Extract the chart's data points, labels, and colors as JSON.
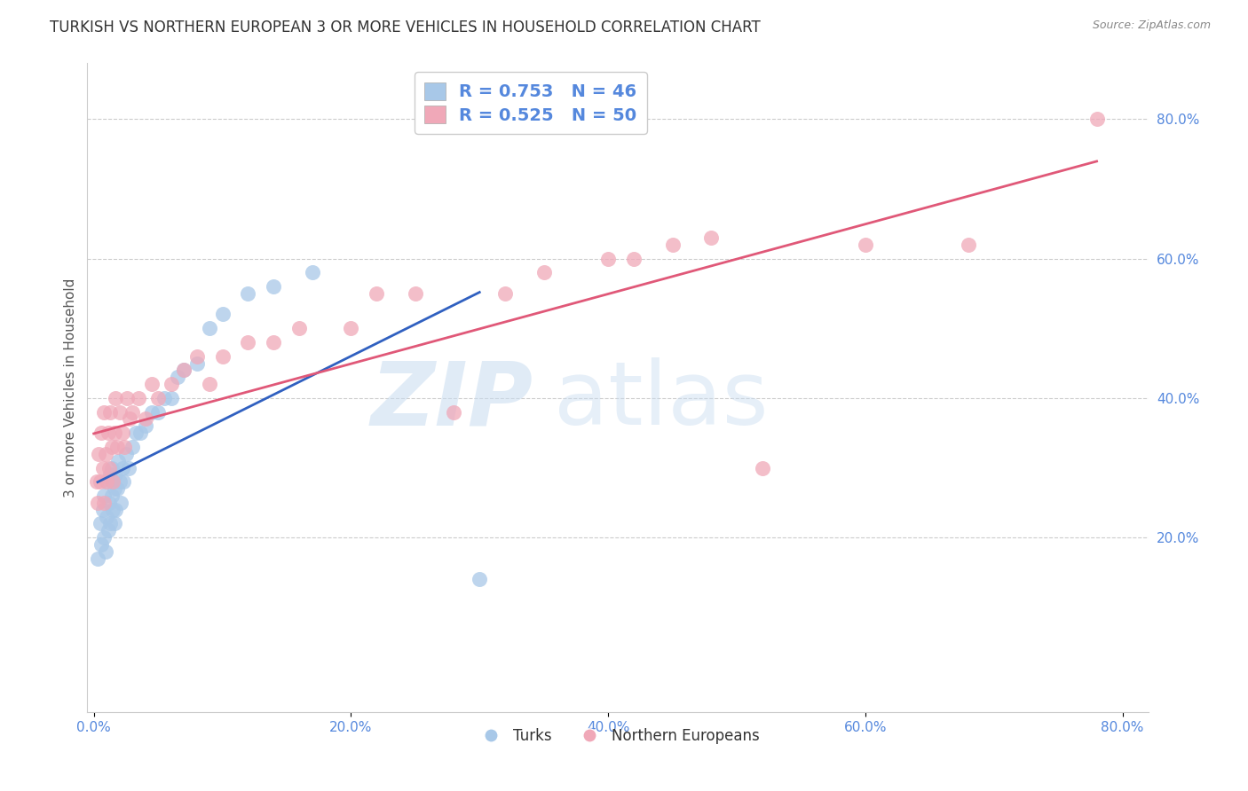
{
  "title": "TURKISH VS NORTHERN EUROPEAN 3 OR MORE VEHICLES IN HOUSEHOLD CORRELATION CHART",
  "source": "Source: ZipAtlas.com",
  "ylabel": "3 or more Vehicles in Household",
  "xlim": [
    -0.005,
    0.82
  ],
  "ylim": [
    -0.05,
    0.88
  ],
  "xtick_values": [
    0.0,
    0.2,
    0.4,
    0.6,
    0.8
  ],
  "ytick_values": [
    0.2,
    0.4,
    0.6,
    0.8
  ],
  "blue_R": 0.753,
  "blue_N": 46,
  "pink_R": 0.525,
  "pink_N": 50,
  "blue_color": "#A8C8E8",
  "pink_color": "#F0A8B8",
  "blue_line_color": "#3060C0",
  "pink_line_color": "#E05878",
  "legend_label_blue": "Turks",
  "legend_label_pink": "Northern Europeans",
  "watermark_zip": "ZIP",
  "watermark_atlas": "atlas",
  "blue_scatter_x": [
    0.003,
    0.005,
    0.006,
    0.007,
    0.008,
    0.008,
    0.009,
    0.01,
    0.01,
    0.011,
    0.012,
    0.013,
    0.013,
    0.014,
    0.014,
    0.015,
    0.015,
    0.016,
    0.016,
    0.017,
    0.017,
    0.018,
    0.019,
    0.02,
    0.021,
    0.022,
    0.023,
    0.025,
    0.027,
    0.03,
    0.033,
    0.036,
    0.04,
    0.045,
    0.05,
    0.055,
    0.06,
    0.065,
    0.07,
    0.08,
    0.09,
    0.1,
    0.12,
    0.14,
    0.17,
    0.3
  ],
  "blue_scatter_y": [
    0.17,
    0.22,
    0.19,
    0.24,
    0.2,
    0.26,
    0.18,
    0.23,
    0.28,
    0.21,
    0.25,
    0.29,
    0.22,
    0.26,
    0.3,
    0.24,
    0.28,
    0.22,
    0.27,
    0.24,
    0.29,
    0.27,
    0.31,
    0.28,
    0.25,
    0.3,
    0.28,
    0.32,
    0.3,
    0.33,
    0.35,
    0.35,
    0.36,
    0.38,
    0.38,
    0.4,
    0.4,
    0.43,
    0.44,
    0.45,
    0.5,
    0.52,
    0.55,
    0.56,
    0.58,
    0.14
  ],
  "pink_scatter_x": [
    0.002,
    0.003,
    0.004,
    0.005,
    0.006,
    0.007,
    0.008,
    0.008,
    0.009,
    0.01,
    0.011,
    0.012,
    0.013,
    0.014,
    0.015,
    0.016,
    0.017,
    0.018,
    0.02,
    0.022,
    0.024,
    0.026,
    0.028,
    0.03,
    0.035,
    0.04,
    0.045,
    0.05,
    0.06,
    0.07,
    0.08,
    0.09,
    0.1,
    0.12,
    0.14,
    0.16,
    0.2,
    0.22,
    0.25,
    0.28,
    0.32,
    0.35,
    0.4,
    0.42,
    0.45,
    0.48,
    0.52,
    0.6,
    0.68,
    0.78
  ],
  "pink_scatter_y": [
    0.28,
    0.25,
    0.32,
    0.28,
    0.35,
    0.3,
    0.25,
    0.38,
    0.32,
    0.28,
    0.35,
    0.3,
    0.38,
    0.33,
    0.28,
    0.35,
    0.4,
    0.33,
    0.38,
    0.35,
    0.33,
    0.4,
    0.37,
    0.38,
    0.4,
    0.37,
    0.42,
    0.4,
    0.42,
    0.44,
    0.46,
    0.42,
    0.46,
    0.48,
    0.48,
    0.5,
    0.5,
    0.55,
    0.55,
    0.38,
    0.55,
    0.58,
    0.6,
    0.6,
    0.62,
    0.63,
    0.3,
    0.62,
    0.62,
    0.8
  ],
  "background_color": "#ffffff",
  "grid_color": "#cccccc",
  "title_fontsize": 12,
  "label_fontsize": 11,
  "tick_fontsize": 11
}
